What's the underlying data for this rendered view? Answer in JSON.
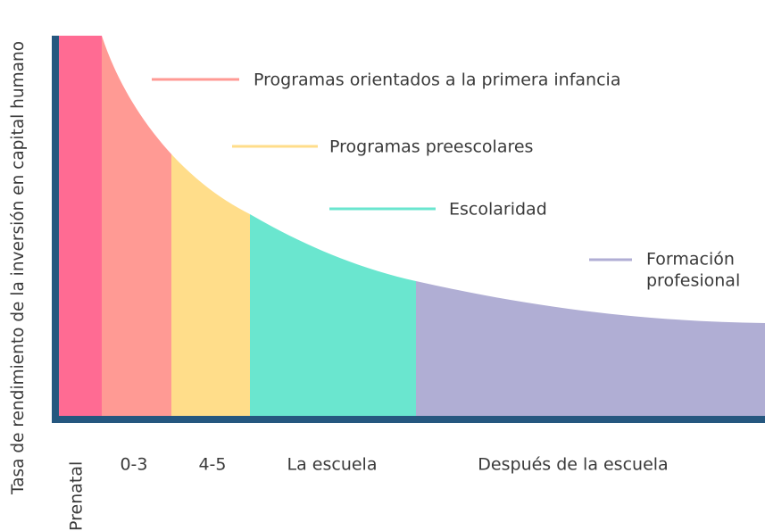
{
  "y_axis_label": "Tasa de rendimiento de la inversión en capital humano",
  "stages": [
    "Prenatal",
    "0-3",
    "4-5",
    "La escuela",
    "Después de la escuela"
  ],
  "legend": [
    "Programas orientados a la primera infancia",
    "Programas preescolares",
    "Escolaridad",
    [
      "Formación",
      "profesional"
    ]
  ]
}
